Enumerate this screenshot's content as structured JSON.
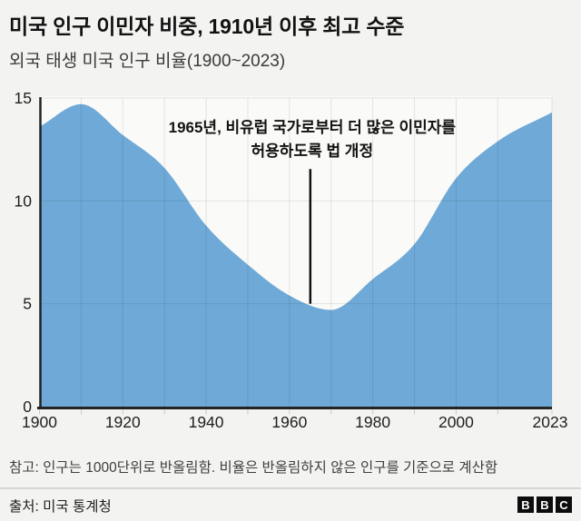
{
  "header": {
    "title": "미국 인구 이민자 비중, 1910년 이후 최고 수준",
    "subtitle": "외국 태생 미국 인구 비율(1900~2023)"
  },
  "chart_data": {
    "type": "area",
    "title": "미국 인구 이민자 비중, 1910년 이후 최고 수준",
    "subtitle": "외국 태생 미국 인구 비율(1900~2023)",
    "x": [
      1900,
      1910,
      1920,
      1930,
      1940,
      1950,
      1960,
      1970,
      1980,
      1990,
      2000,
      2010,
      2023
    ],
    "values": [
      13.6,
      14.7,
      13.2,
      11.6,
      8.8,
      6.9,
      5.4,
      4.7,
      6.2,
      7.9,
      11.1,
      12.9,
      14.3
    ],
    "unit": "percent",
    "xlim": [
      1900,
      2023
    ],
    "ylim": [
      0,
      15
    ],
    "y_ticks": [
      0,
      5,
      10,
      15
    ],
    "x_tick_years": [
      1900,
      1920,
      1940,
      1960,
      1980,
      2000,
      2023
    ],
    "x_tick_labels": [
      "1900",
      "1920",
      "1940",
      "1960",
      "1980",
      "2000",
      "2023"
    ],
    "grid_years": [
      1900,
      1910,
      1920,
      1930,
      1940,
      1950,
      1960,
      1970,
      1980,
      1990,
      2000,
      2010,
      2023
    ],
    "grid": true,
    "legend": false,
    "curve": "monotone",
    "area_color": "#6ea9d7",
    "plot_background": "#fafaf8",
    "gridline_color": "rgba(25,25,25,0.10)",
    "axis_color": "#242424",
    "annotation": {
      "year": 1965,
      "text_lines": [
        "1965년, 비유럽 국가로부터 더 많은 이민자를",
        "허용하도록 법 개정"
      ],
      "pointer_top_value": 11.55,
      "pointer_bottom_value": 5.0,
      "pointer_color": "#111111"
    }
  },
  "footer": {
    "note": "참고: 인구는 1000단위로 반올림함. 비율은 반올림하지 않은 인구를 기준으로 계산함",
    "source": "출처: 미국 통계청",
    "logo": [
      "B",
      "B",
      "C"
    ]
  }
}
